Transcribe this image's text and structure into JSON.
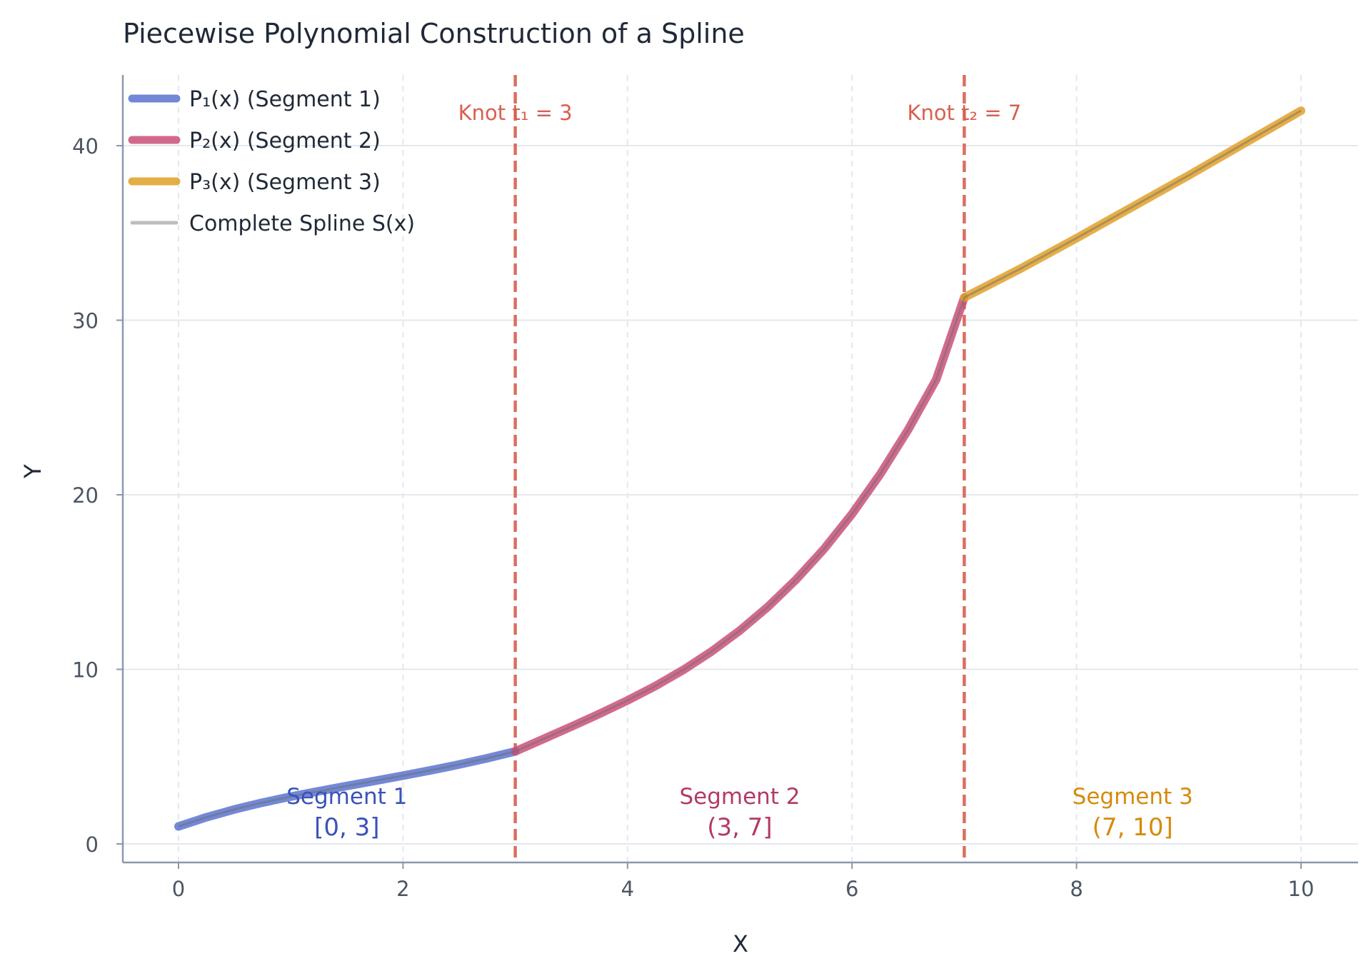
{
  "chart_data": {
    "type": "line",
    "title": "Piecewise Polynomial Construction of a Spline",
    "xlabel": "X",
    "ylabel": "Y",
    "xlim": [
      -0.5,
      10.5
    ],
    "ylim": [
      -1.1,
      44
    ],
    "xticks": [
      0,
      2,
      4,
      6,
      8,
      10
    ],
    "yticks": [
      0,
      10,
      20,
      30,
      40
    ],
    "grid": true,
    "legend_position": "top-left",
    "series": [
      {
        "name": "P₁(x) (Segment 1)",
        "color": "#5a74cf",
        "x": [
          0,
          0.25,
          0.5,
          0.75,
          1.0,
          1.25,
          1.5,
          1.75,
          2.0,
          2.25,
          2.5,
          2.75,
          3.0
        ],
        "y": [
          1.0,
          1.53,
          1.98,
          2.37,
          2.71,
          3.02,
          3.32,
          3.61,
          3.91,
          4.22,
          4.55,
          4.91,
          5.3
        ]
      },
      {
        "name": "P₂(x) (Segment 2)",
        "color": "#c9507a",
        "x": [
          3.0,
          3.25,
          3.5,
          3.75,
          4.0,
          4.25,
          4.5,
          4.75,
          5.0,
          5.25,
          5.5,
          5.75,
          6.0,
          6.25,
          6.5,
          6.75,
          7.0
        ],
        "y": [
          5.3,
          6.01,
          6.72,
          7.45,
          8.22,
          9.05,
          9.98,
          11.03,
          12.22,
          13.58,
          15.13,
          16.89,
          18.9,
          21.17,
          23.73,
          26.6,
          31.3
        ]
      },
      {
        "name": "P₃(x) (Segment 3)",
        "color": "#e0a028",
        "x": [
          7.0,
          7.5,
          8.0,
          8.5,
          9.0,
          9.5,
          10.0
        ],
        "y": [
          31.3,
          32.95,
          34.7,
          36.5,
          38.3,
          40.15,
          42.0
        ]
      },
      {
        "name": "Complete Spline S(x)",
        "color": "#bdbdbd"
      }
    ],
    "knots": [
      {
        "x": 3,
        "label": "Knot t₁ = 3"
      },
      {
        "x": 7,
        "label": "Knot t₂ = 7"
      }
    ],
    "knot_color": "#d95f4e",
    "segment_labels": [
      {
        "x": 1.5,
        "name": "Segment 1",
        "interval": "[0, 3]",
        "color": "#3a52b8"
      },
      {
        "x": 5.0,
        "name": "Segment 2",
        "interval": "(3, 7]",
        "color": "#b23a68"
      },
      {
        "x": 8.5,
        "name": "Segment 3",
        "interval": "(7, 10]",
        "color": "#d68a0c"
      }
    ]
  }
}
